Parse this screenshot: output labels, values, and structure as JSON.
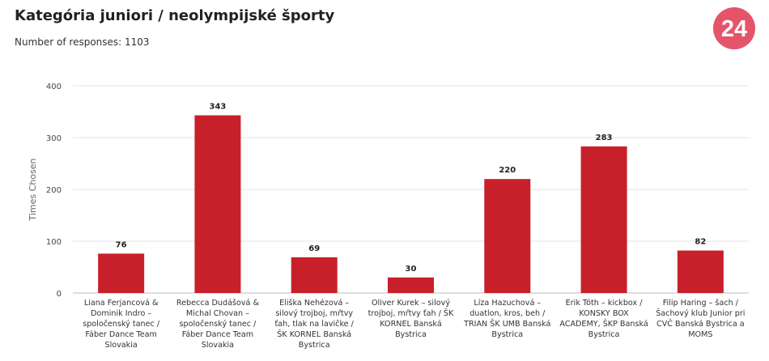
{
  "page": {
    "title": "Kategória juniori / neolympijské športy",
    "subtitle": "Number of responses: 1103",
    "logo_text": "24"
  },
  "colors": {
    "bar": "#c8202a",
    "logo_bg": "#e6546a",
    "grid": "#e3e3e3",
    "axis": "#bdbdbd"
  },
  "chart_data": {
    "type": "bar",
    "title": "Kategória juniori / neolympijské športy",
    "subtitle": "Number of responses: 1103",
    "xlabel": "",
    "ylabel": "Times Chosen",
    "ylim": [
      0,
      400
    ],
    "yticks": [
      0,
      100,
      200,
      300,
      400
    ],
    "grid": true,
    "categories": [
      "Liana Ferjancová & Dominik Indro – spoločenský tanec / Fáber Dance Team Slovakia",
      "Rebecca Dudášová & Michal Chovan – spoločenský tanec / Fáber Dance Team Slovakia",
      "Eliška Nehézová – silový trojboj, mŕtvy ťah, tlak na lavičke / ŠK KORNEL Banská Bystrica",
      "Oliver Kurek – silový trojboj, mŕtvy ťah / ŠK KORNEL Banská Bystrica",
      "Líza Hazuchová – duatlon, kros, beh / TRIAN ŠK UMB Banská Bystrica",
      "Erik Tóth – kickbox / KONSKY BOX ACADEMY, ŠKP Banská Bystrica",
      "Filip Haring – šach / Šachový klub Junior pri CVČ Banská Bystrica a MOMS"
    ],
    "values": [
      76,
      343,
      69,
      30,
      220,
      283,
      82
    ]
  }
}
